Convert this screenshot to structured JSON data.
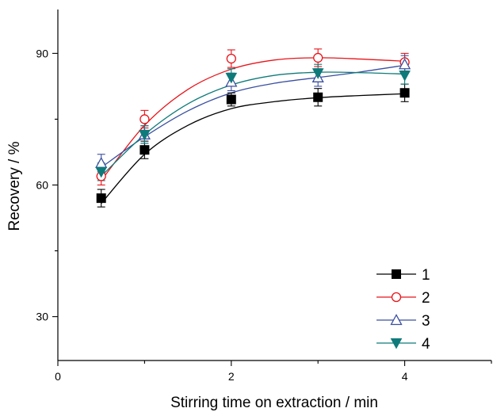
{
  "chart_data": {
    "type": "scatter",
    "title": "",
    "xlabel": "Stirring time on extraction / min",
    "ylabel": "Recovery / %",
    "xlim": [
      0,
      5
    ],
    "ylim": [
      20,
      100
    ],
    "xticks": [
      0,
      2,
      4
    ],
    "yticks": [
      30,
      60,
      90
    ],
    "grid": false,
    "legend_position": "bottom-right",
    "series": [
      {
        "name": "1",
        "color": "#000000",
        "marker": "square-filled",
        "x": [
          0.5,
          1,
          2,
          3,
          4
        ],
        "y": [
          57,
          68,
          79.5,
          80,
          81
        ],
        "err": [
          2,
          2,
          1.5,
          2,
          2
        ],
        "fit": [
          [
            0.5,
            55.8
          ],
          [
            1,
            67
          ],
          [
            1.5,
            73.6
          ],
          [
            2,
            77.4
          ],
          [
            2.5,
            79
          ],
          [
            3,
            79.9
          ],
          [
            3.5,
            80.4
          ],
          [
            4,
            80.8
          ]
        ]
      },
      {
        "name": "2",
        "color": "#e8141a",
        "marker": "circle-open",
        "x": [
          0.5,
          1,
          2,
          3,
          4
        ],
        "y": [
          62,
          75,
          88.8,
          89,
          88
        ],
        "err": [
          2,
          2,
          2,
          2,
          2
        ],
        "fit": [
          [
            0.5,
            61
          ],
          [
            1,
            73.6
          ],
          [
            1.5,
            81.8
          ],
          [
            2,
            86.4
          ],
          [
            2.5,
            88.5
          ],
          [
            3,
            89
          ],
          [
            3.5,
            88.7
          ],
          [
            4,
            88.2
          ]
        ]
      },
      {
        "name": "3",
        "color": "#3a4fa0",
        "marker": "triangle-up-open",
        "x": [
          0.5,
          1,
          2,
          3,
          4
        ],
        "y": [
          65,
          71.5,
          83.5,
          84.5,
          87.5
        ],
        "err": [
          2,
          2,
          2,
          2,
          2
        ],
        "fit": [
          [
            0.5,
            64
          ],
          [
            1,
            71
          ],
          [
            1.5,
            76.9
          ],
          [
            2,
            81
          ],
          [
            2.5,
            83.2
          ],
          [
            3,
            84.5
          ],
          [
            3.5,
            85.8
          ],
          [
            4,
            87.3
          ]
        ]
      },
      {
        "name": "4",
        "color": "#0f7a7a",
        "marker": "triangle-down-filled",
        "x": [
          0.5,
          1,
          2,
          3,
          4
        ],
        "y": [
          63,
          71.5,
          84.5,
          85.5,
          85
        ],
        "err": [
          2,
          2,
          2,
          2,
          2
        ],
        "fit": [
          [
            0.5,
            62
          ],
          [
            1,
            71.5
          ],
          [
            1.5,
            78.5
          ],
          [
            2,
            82.8
          ],
          [
            2.5,
            85
          ],
          [
            3,
            85.7
          ],
          [
            3.5,
            85.6
          ],
          [
            4,
            85.3
          ]
        ]
      }
    ]
  }
}
